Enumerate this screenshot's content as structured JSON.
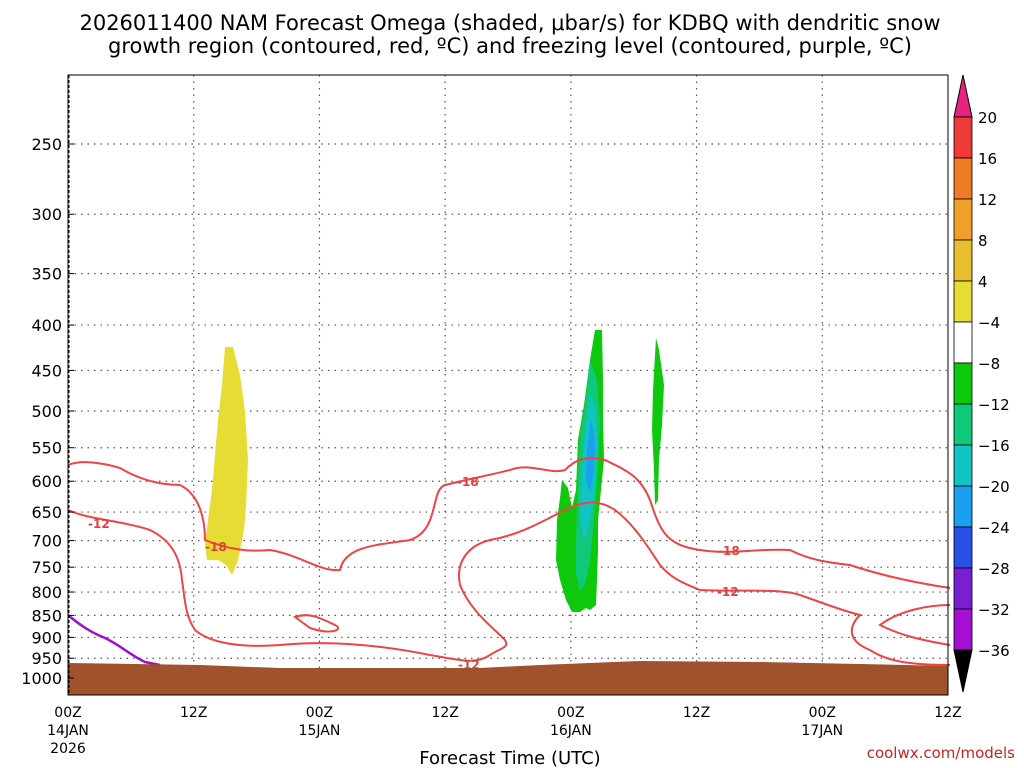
{
  "chart_data": {
    "type": "contour",
    "title_line1": "2026011400 NAM Forecast Omega (shaded, μbar/s) for KDBQ with dendritic snow",
    "title_line2": "growth region (contoured, red, ºC) and freezing level (contoured, purple, ºC)",
    "xlabel": "Forecast Time (UTC)",
    "credit": "coolwx.com/models",
    "y_axis": {
      "units": "hPa",
      "scale": "log",
      "range": [
        200,
        1050
      ],
      "ticks": [
        250,
        300,
        350,
        400,
        450,
        500,
        550,
        600,
        650,
        700,
        750,
        800,
        850,
        900,
        950,
        1000
      ]
    },
    "x_axis": {
      "range_hours": [
        0,
        84
      ],
      "ticks": [
        {
          "h": 0,
          "label": "00Z",
          "date": "14JAN",
          "year": "2026"
        },
        {
          "h": 12,
          "label": "12Z",
          "date": "",
          "year": ""
        },
        {
          "h": 24,
          "label": "00Z",
          "date": "15JAN",
          "year": ""
        },
        {
          "h": 36,
          "label": "12Z",
          "date": "",
          "year": ""
        },
        {
          "h": 48,
          "label": "00Z",
          "date": "16JAN",
          "year": ""
        },
        {
          "h": 60,
          "label": "12Z",
          "date": "",
          "year": ""
        },
        {
          "h": 72,
          "label": "00Z",
          "date": "17JAN",
          "year": ""
        },
        {
          "h": 84,
          "label": "12Z",
          "date": "",
          "year": ""
        }
      ]
    },
    "colorbar": {
      "labels": [
        "20",
        "16",
        "12",
        "8",
        "4",
        "−4",
        "−8",
        "−12",
        "−16",
        "−20",
        "−24",
        "−28",
        "−32",
        "−36"
      ],
      "colors": [
        "#e8237e",
        "#ef3b37",
        "#ee7b26",
        "#f0a02a",
        "#e8be2e",
        "#e6dc33",
        "#ffffff",
        "#0ec80e",
        "#10c87a",
        "#10c4c4",
        "#1aa0ee",
        "#2850e6",
        "#7a1ed2",
        "#a50fd2",
        "#a0a0a0",
        "#000000"
      ]
    },
    "contour_labels": {
      "snow_growth": [
        "-12",
        "-18"
      ]
    },
    "colors": {
      "snow_growth_contour": "#ef4444",
      "freezing_level_contour": "#9b0ed0",
      "ground": "#a0522d",
      "omega_positive": "#e6dc33",
      "omega_neg_weak": "#0ec80e",
      "omega_neg_mid": "#10c87a",
      "omega_neg_strong": "#10c4c4",
      "omega_neg_max": "#1aa0ee"
    }
  }
}
